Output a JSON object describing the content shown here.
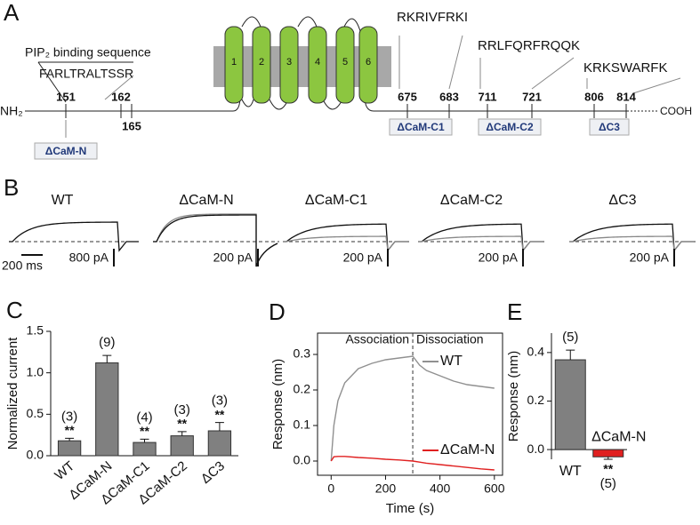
{
  "panel_a": {
    "label": "A",
    "pip_label": "PIP₂ binding sequence",
    "pip_sequence": "FARLTRALTSSR",
    "n_terminus": "NH₂",
    "c_terminus": "COOH",
    "helices": [
      "1",
      "2",
      "3",
      "4",
      "5",
      "6"
    ],
    "positions": [
      "151",
      "162",
      "165",
      "675",
      "683",
      "711",
      "721",
      "806",
      "814"
    ],
    "sequences": [
      "RKRIVFRKI",
      "RRLFQRFRQQK",
      "KRKSWARFK"
    ],
    "deletions": [
      "ΔCaM-N",
      "ΔCaM-C1",
      "ΔCaM-C2",
      "ΔC3"
    ]
  },
  "panel_b": {
    "label": "B",
    "constructs": [
      "WT",
      "ΔCaM-N",
      "ΔCaM-C1",
      "ΔCaM-C2",
      "ΔC3"
    ],
    "time_scale": "200 ms",
    "current_scales": [
      "800 pA",
      "200 pA",
      "200 pA",
      "200 pA",
      "200 pA"
    ]
  },
  "chart_data": [
    {
      "type": "bar",
      "panel": "C",
      "ylabel": "Normalized current",
      "categories": [
        "WT",
        "ΔCaM-N",
        "ΔCaM-C1",
        "ΔCaM-C2",
        "ΔC3"
      ],
      "values": [
        0.18,
        1.12,
        0.16,
        0.24,
        0.3
      ],
      "errors": [
        0.03,
        0.09,
        0.04,
        0.05,
        0.1
      ],
      "color": "#808080",
      "n_labels": [
        "(3)",
        "(9)",
        "(4)",
        "(3)",
        "(3)"
      ],
      "significance": [
        "**",
        null,
        "**",
        "**",
        "**"
      ],
      "ylim": [
        0,
        1.5
      ],
      "yticks": [
        {
          "value": 0,
          "label": "0.0"
        },
        0.5,
        {
          "value": 1,
          "label": "1.0"
        },
        1.5
      ]
    },
    {
      "type": "line",
      "panel": "D",
      "xlabel": "Time (s)",
      "ylabel": "Response (nm)",
      "annotations": [
        "Association",
        "Dissociation"
      ],
      "x": [
        0,
        10,
        25,
        50,
        100,
        150,
        200,
        250,
        300,
        325,
        350,
        400,
        450,
        500,
        550,
        600
      ],
      "series": [
        {
          "name": "WT",
          "color": "#909090",
          "values": [
            0,
            0.1,
            0.17,
            0.22,
            0.26,
            0.275,
            0.285,
            0.29,
            0.295,
            0.27,
            0.255,
            0.24,
            0.225,
            0.215,
            0.21,
            0.205
          ]
        },
        {
          "name": "ΔCaM-N",
          "color": "#e02020",
          "values": [
            0,
            0.012,
            0.013,
            0.013,
            0.01,
            0.008,
            0.005,
            0.003,
            0,
            -0.003,
            -0.006,
            -0.01,
            -0.014,
            -0.018,
            -0.022,
            -0.025
          ]
        }
      ],
      "xlim": [
        -50,
        630
      ],
      "xticks": [
        0,
        200,
        400,
        600
      ],
      "ylim": [
        -0.04,
        0.36
      ],
      "yticks": [
        {
          "value": 0,
          "label": "0.0"
        },
        0.1,
        0.2,
        0.3
      ]
    },
    {
      "type": "bar",
      "panel": "E",
      "ylabel": "Response (nm)",
      "categories": [
        "WT",
        "ΔCaM-N"
      ],
      "values": [
        0.37,
        -0.03
      ],
      "errors": [
        0.04,
        0.01
      ],
      "colors": [
        "#808080",
        "#e02020"
      ],
      "n_labels": [
        "(5)",
        "(5)"
      ],
      "significance": [
        null,
        "**"
      ],
      "ylim": [
        -0.04,
        0.48
      ],
      "yticks": [
        {
          "value": 0,
          "label": "0.0"
        },
        0.2,
        0.4
      ]
    }
  ]
}
